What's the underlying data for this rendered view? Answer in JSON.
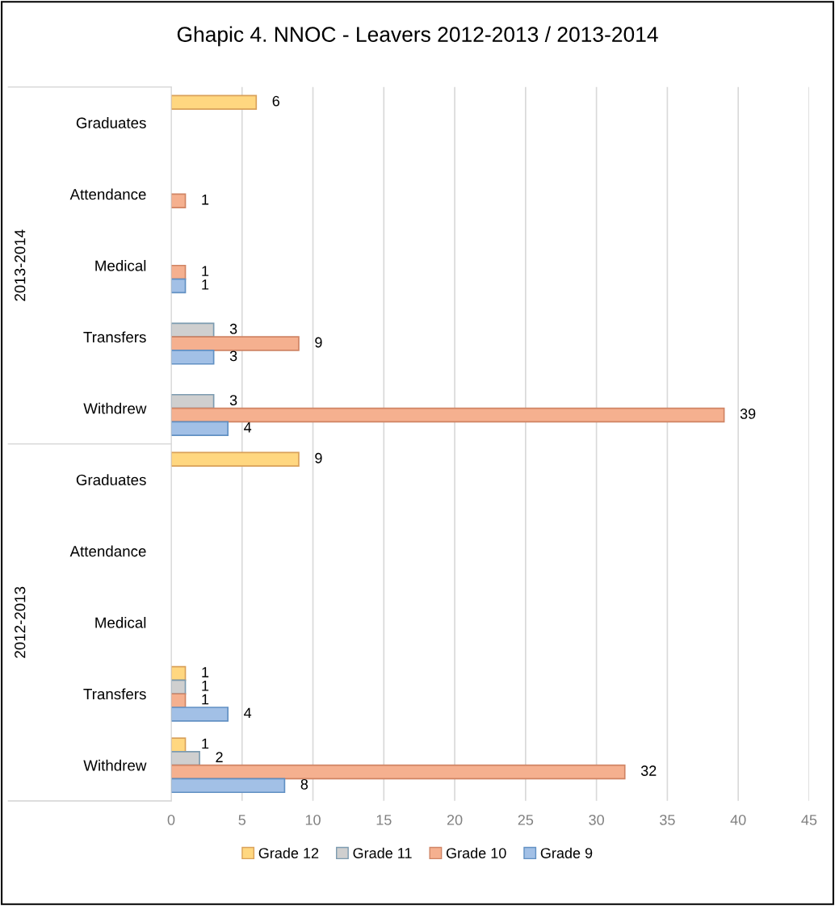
{
  "chart_data": {
    "type": "bar",
    "orientation": "horizontal",
    "title": "Ghapic 4. NNOC - Leavers 2012-2013 / 2013-2014",
    "categories": [
      "Graduates",
      "Attendance",
      "Medical",
      "Transfers",
      "Withdrew",
      "Graduates",
      "Attendance",
      "Medical",
      "Transfers",
      "Withdrew"
    ],
    "series": [
      {
        "name": "Grade 12",
        "color": "#ffd780",
        "values": [
          6,
          null,
          null,
          null,
          null,
          9,
          null,
          null,
          1,
          1
        ]
      },
      {
        "name": "Grade 11",
        "color": "#cfcfcf",
        "values": [
          null,
          null,
          null,
          3,
          3,
          null,
          null,
          null,
          1,
          2
        ]
      },
      {
        "name": "Grade 10",
        "color": "#f5b08f",
        "values": [
          null,
          1,
          1,
          9,
          39,
          null,
          null,
          null,
          1,
          32
        ]
      },
      {
        "name": "Grade 9",
        "color": "#a2c0e6",
        "values": [
          null,
          null,
          1,
          3,
          4,
          null,
          null,
          null,
          4,
          8
        ]
      }
    ],
    "annotations": [
      "2013-2014",
      "2012-2013"
    ],
    "xlim": [
      0,
      45
    ],
    "xticks": [
      0,
      5,
      10,
      15,
      20,
      25,
      30,
      35,
      40,
      45
    ],
    "grid": "x",
    "legend": "bottom",
    "data_labels": true
  }
}
